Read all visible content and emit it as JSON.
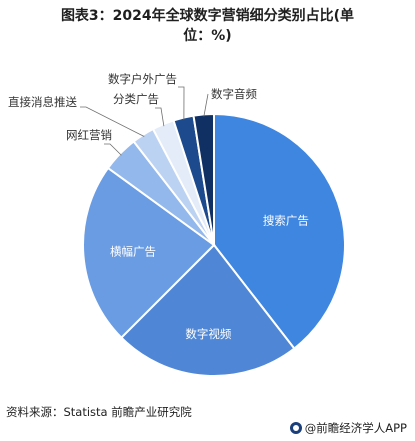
{
  "title_line1": "图表3：2024年全球数字营销细分类别占比(单",
  "title_line2": "位：%)",
  "source": "资料来源：Statista 前瞻产业研究院",
  "brand": "@前瞻经济学人APP",
  "chart_data": {
    "type": "pie",
    "title": "图表3：2024年全球数字营销细分类别占比(单位：%)",
    "unit": "%",
    "slices": [
      {
        "label": "搜索广告",
        "value": 39.5,
        "color": "#3f86e0"
      },
      {
        "label": "数字视频",
        "value": 23.0,
        "color": "#4f87d6"
      },
      {
        "label": "横幅广告",
        "value": 22.5,
        "color": "#6a9ce4"
      },
      {
        "label": "网红营销",
        "value": 4.5,
        "color": "#93b8ec"
      },
      {
        "label": "直接消息推送",
        "value": 2.8,
        "color": "#bcd2f2"
      },
      {
        "label": "分类广告",
        "value": 2.7,
        "color": "#e3ecf8"
      },
      {
        "label": "数字户外广告",
        "value": 2.5,
        "color": "#1d4a8c"
      },
      {
        "label": "数字音频",
        "value": 2.5,
        "color": "#102f63"
      }
    ]
  }
}
